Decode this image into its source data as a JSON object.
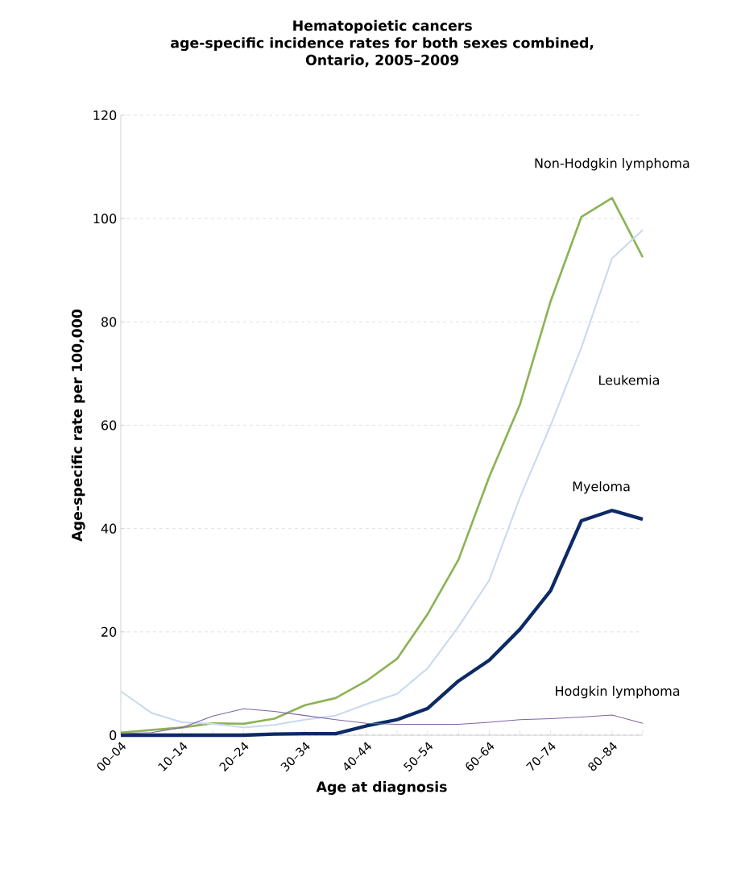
{
  "chart_data": {
    "type": "line",
    "title": "Hematopoietic cancers\nage-specific incidence rates for both sexes combined,\nOntario, 2005–2009",
    "xlabel": "Age at diagnosis",
    "ylabel": "Age-specific rate per 100,000",
    "categories": [
      "00–04",
      null,
      "10–14",
      null,
      "20–24",
      null,
      "30–34",
      null,
      "40–44",
      null,
      "50–54",
      null,
      "60–64",
      null,
      "70–74",
      null,
      "80–84",
      null
    ],
    "series": [
      {
        "name": "Non-Hodgkin lymphoma",
        "color": "#8db356",
        "values": [
          0.5,
          1,
          1.5,
          2.3,
          2.2,
          3.2,
          5.8,
          7.2,
          10.5,
          14.8,
          23.5,
          34,
          50,
          64,
          84,
          100.3,
          104,
          92.5
        ]
      },
      {
        "name": "Leukemia",
        "color": "#c6d9f1",
        "values": [
          8.5,
          4.3,
          2.5,
          2.2,
          1.5,
          2,
          3,
          3.8,
          6,
          8,
          13,
          21,
          30,
          46,
          60,
          75,
          92.3,
          97.8
        ]
      },
      {
        "name": "Myeloma",
        "color": "#0c2a66",
        "values": [
          0,
          0,
          0,
          0,
          0,
          0.2,
          0.3,
          0.3,
          1.8,
          3,
          5.2,
          10.5,
          14.5,
          20.5,
          28,
          41.5,
          43.5,
          41.8
        ]
      },
      {
        "name": "Hodgkin lymphoma",
        "color": "#8064a2",
        "values": [
          0.3,
          0.5,
          1.5,
          3.7,
          5.1,
          4.6,
          3.8,
          3,
          2.3,
          2.1,
          2.1,
          2.1,
          2.5,
          3,
          3.2,
          3.5,
          3.9,
          2.3
        ]
      }
    ],
    "ylim": [
      0,
      120
    ],
    "yticks": [
      0,
      20,
      40,
      60,
      80,
      100,
      120
    ],
    "grid": "y",
    "legend": false,
    "marker": "none",
    "line_style": "solid"
  }
}
